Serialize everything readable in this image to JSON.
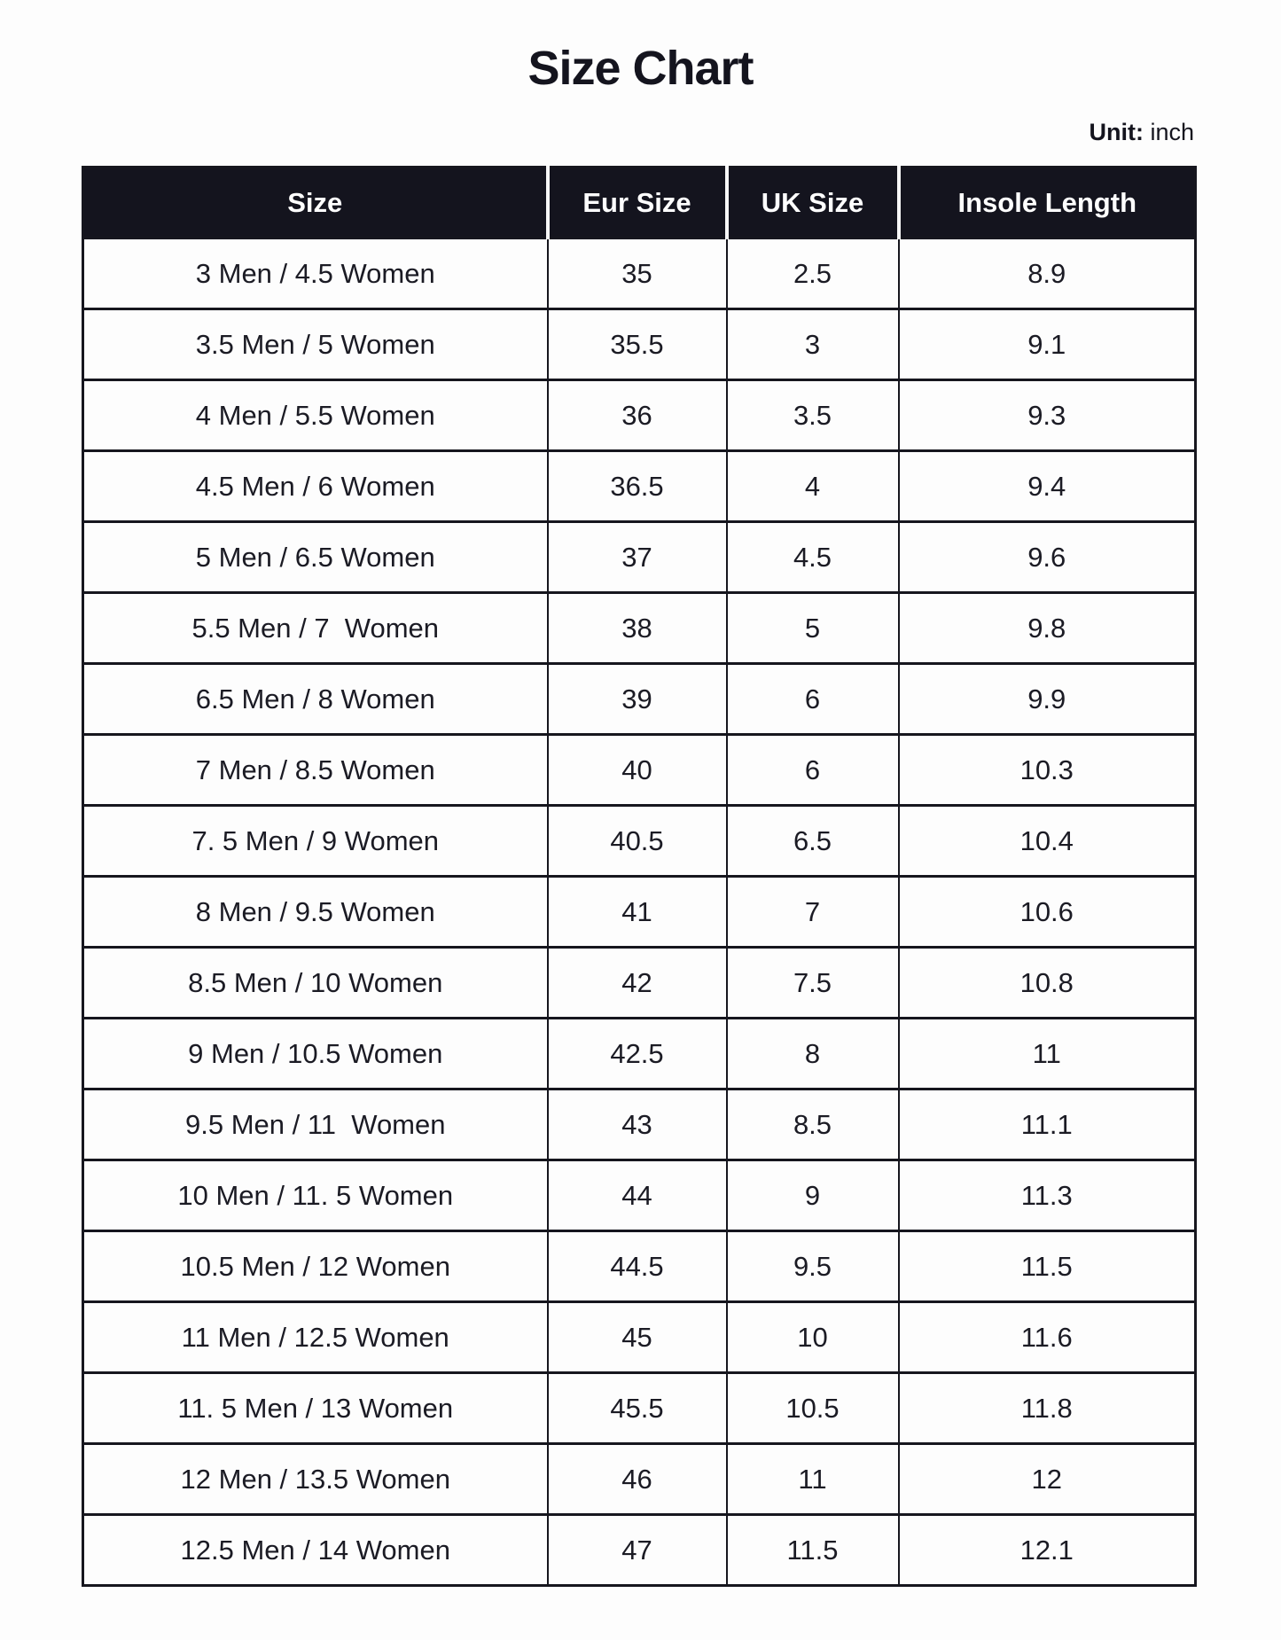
{
  "title": "Size Chart",
  "unit": {
    "label": "Unit:",
    "value": " inch"
  },
  "table": {
    "columns": [
      "Size",
      "Eur Size",
      "UK Size",
      "Insole Length"
    ],
    "rows": [
      [
        "3 Men / 4.5 Women",
        "35",
        "2.5",
        "8.9"
      ],
      [
        "3.5 Men / 5 Women",
        "35.5",
        "3",
        "9.1"
      ],
      [
        "4 Men / 5.5 Women",
        "36",
        "3.5",
        "9.3"
      ],
      [
        "4.5 Men / 6 Women",
        "36.5",
        "4",
        "9.4"
      ],
      [
        "5 Men / 6.5 Women",
        "37",
        "4.5",
        "9.6"
      ],
      [
        "5.5 Men / 7  Women",
        "38",
        "5",
        "9.8"
      ],
      [
        "6.5 Men / 8 Women",
        "39",
        "6",
        "9.9"
      ],
      [
        "7 Men / 8.5 Women",
        "40",
        "6",
        "10.3"
      ],
      [
        "7. 5 Men / 9 Women",
        "40.5",
        "6.5",
        "10.4"
      ],
      [
        "8 Men / 9.5 Women",
        "41",
        "7",
        "10.6"
      ],
      [
        "8.5 Men / 10 Women",
        "42",
        "7.5",
        "10.8"
      ],
      [
        "9 Men / 10.5 Women",
        "42.5",
        "8",
        "11"
      ],
      [
        "9.5 Men / 11  Women",
        "43",
        "8.5",
        "11.1"
      ],
      [
        "10 Men / 11. 5 Women",
        "44",
        "9",
        "11.3"
      ],
      [
        "10.5 Men / 12 Women",
        "44.5",
        "9.5",
        "11.5"
      ],
      [
        "11 Men / 12.5 Women",
        "45",
        "10",
        "11.6"
      ],
      [
        "11. 5 Men / 13 Women",
        "45.5",
        "10.5",
        "11.8"
      ],
      [
        "12 Men / 13.5 Women",
        "46",
        "11",
        "12"
      ],
      [
        "12.5 Men / 14 Women",
        "47",
        "11.5",
        "12.1"
      ]
    ]
  },
  "colors": {
    "header_bg": "#14141e",
    "header_text": "#ffffff",
    "body_text": "#1b1b24",
    "border": "#16161e",
    "page_bg": "#fdfdfd"
  }
}
